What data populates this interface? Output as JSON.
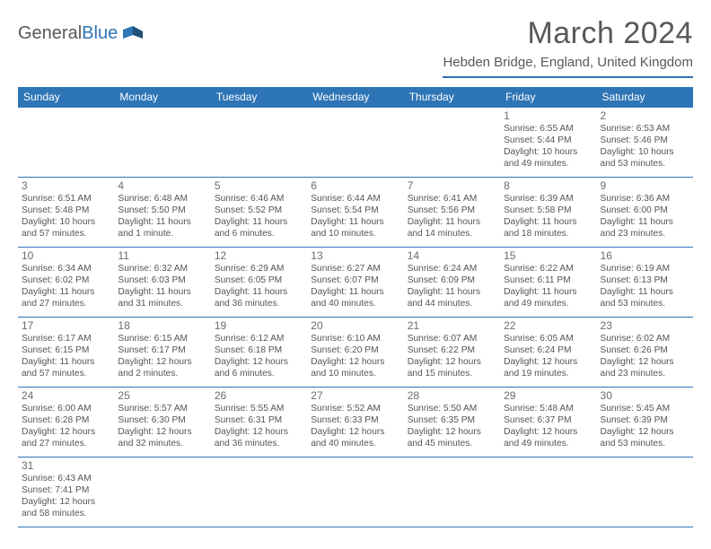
{
  "brand": {
    "name_a": "General",
    "name_b": "Blue"
  },
  "title": "March 2024",
  "location": "Hebden Bridge, England, United Kingdom",
  "colors": {
    "accent": "#2e75b6",
    "text": "#595959",
    "cell_text": "#555555",
    "bg": "#ffffff"
  },
  "weekdays": [
    "Sunday",
    "Monday",
    "Tuesday",
    "Wednesday",
    "Thursday",
    "Friday",
    "Saturday"
  ],
  "weeks": [
    [
      null,
      null,
      null,
      null,
      null,
      {
        "n": "1",
        "l": [
          "Sunrise: 6:55 AM",
          "Sunset: 5:44 PM",
          "Daylight: 10 hours",
          "and 49 minutes."
        ]
      },
      {
        "n": "2",
        "l": [
          "Sunrise: 6:53 AM",
          "Sunset: 5:46 PM",
          "Daylight: 10 hours",
          "and 53 minutes."
        ]
      }
    ],
    [
      {
        "n": "3",
        "l": [
          "Sunrise: 6:51 AM",
          "Sunset: 5:48 PM",
          "Daylight: 10 hours",
          "and 57 minutes."
        ]
      },
      {
        "n": "4",
        "l": [
          "Sunrise: 6:48 AM",
          "Sunset: 5:50 PM",
          "Daylight: 11 hours",
          "and 1 minute."
        ]
      },
      {
        "n": "5",
        "l": [
          "Sunrise: 6:46 AM",
          "Sunset: 5:52 PM",
          "Daylight: 11 hours",
          "and 6 minutes."
        ]
      },
      {
        "n": "6",
        "l": [
          "Sunrise: 6:44 AM",
          "Sunset: 5:54 PM",
          "Daylight: 11 hours",
          "and 10 minutes."
        ]
      },
      {
        "n": "7",
        "l": [
          "Sunrise: 6:41 AM",
          "Sunset: 5:56 PM",
          "Daylight: 11 hours",
          "and 14 minutes."
        ]
      },
      {
        "n": "8",
        "l": [
          "Sunrise: 6:39 AM",
          "Sunset: 5:58 PM",
          "Daylight: 11 hours",
          "and 18 minutes."
        ]
      },
      {
        "n": "9",
        "l": [
          "Sunrise: 6:36 AM",
          "Sunset: 6:00 PM",
          "Daylight: 11 hours",
          "and 23 minutes."
        ]
      }
    ],
    [
      {
        "n": "10",
        "l": [
          "Sunrise: 6:34 AM",
          "Sunset: 6:02 PM",
          "Daylight: 11 hours",
          "and 27 minutes."
        ]
      },
      {
        "n": "11",
        "l": [
          "Sunrise: 6:32 AM",
          "Sunset: 6:03 PM",
          "Daylight: 11 hours",
          "and 31 minutes."
        ]
      },
      {
        "n": "12",
        "l": [
          "Sunrise: 6:29 AM",
          "Sunset: 6:05 PM",
          "Daylight: 11 hours",
          "and 36 minutes."
        ]
      },
      {
        "n": "13",
        "l": [
          "Sunrise: 6:27 AM",
          "Sunset: 6:07 PM",
          "Daylight: 11 hours",
          "and 40 minutes."
        ]
      },
      {
        "n": "14",
        "l": [
          "Sunrise: 6:24 AM",
          "Sunset: 6:09 PM",
          "Daylight: 11 hours",
          "and 44 minutes."
        ]
      },
      {
        "n": "15",
        "l": [
          "Sunrise: 6:22 AM",
          "Sunset: 6:11 PM",
          "Daylight: 11 hours",
          "and 49 minutes."
        ]
      },
      {
        "n": "16",
        "l": [
          "Sunrise: 6:19 AM",
          "Sunset: 6:13 PM",
          "Daylight: 11 hours",
          "and 53 minutes."
        ]
      }
    ],
    [
      {
        "n": "17",
        "l": [
          "Sunrise: 6:17 AM",
          "Sunset: 6:15 PM",
          "Daylight: 11 hours",
          "and 57 minutes."
        ]
      },
      {
        "n": "18",
        "l": [
          "Sunrise: 6:15 AM",
          "Sunset: 6:17 PM",
          "Daylight: 12 hours",
          "and 2 minutes."
        ]
      },
      {
        "n": "19",
        "l": [
          "Sunrise: 6:12 AM",
          "Sunset: 6:18 PM",
          "Daylight: 12 hours",
          "and 6 minutes."
        ]
      },
      {
        "n": "20",
        "l": [
          "Sunrise: 6:10 AM",
          "Sunset: 6:20 PM",
          "Daylight: 12 hours",
          "and 10 minutes."
        ]
      },
      {
        "n": "21",
        "l": [
          "Sunrise: 6:07 AM",
          "Sunset: 6:22 PM",
          "Daylight: 12 hours",
          "and 15 minutes."
        ]
      },
      {
        "n": "22",
        "l": [
          "Sunrise: 6:05 AM",
          "Sunset: 6:24 PM",
          "Daylight: 12 hours",
          "and 19 minutes."
        ]
      },
      {
        "n": "23",
        "l": [
          "Sunrise: 6:02 AM",
          "Sunset: 6:26 PM",
          "Daylight: 12 hours",
          "and 23 minutes."
        ]
      }
    ],
    [
      {
        "n": "24",
        "l": [
          "Sunrise: 6:00 AM",
          "Sunset: 6:28 PM",
          "Daylight: 12 hours",
          "and 27 minutes."
        ]
      },
      {
        "n": "25",
        "l": [
          "Sunrise: 5:57 AM",
          "Sunset: 6:30 PM",
          "Daylight: 12 hours",
          "and 32 minutes."
        ]
      },
      {
        "n": "26",
        "l": [
          "Sunrise: 5:55 AM",
          "Sunset: 6:31 PM",
          "Daylight: 12 hours",
          "and 36 minutes."
        ]
      },
      {
        "n": "27",
        "l": [
          "Sunrise: 5:52 AM",
          "Sunset: 6:33 PM",
          "Daylight: 12 hours",
          "and 40 minutes."
        ]
      },
      {
        "n": "28",
        "l": [
          "Sunrise: 5:50 AM",
          "Sunset: 6:35 PM",
          "Daylight: 12 hours",
          "and 45 minutes."
        ]
      },
      {
        "n": "29",
        "l": [
          "Sunrise: 5:48 AM",
          "Sunset: 6:37 PM",
          "Daylight: 12 hours",
          "and 49 minutes."
        ]
      },
      {
        "n": "30",
        "l": [
          "Sunrise: 5:45 AM",
          "Sunset: 6:39 PM",
          "Daylight: 12 hours",
          "and 53 minutes."
        ]
      }
    ],
    [
      {
        "n": "31",
        "l": [
          "Sunrise: 6:43 AM",
          "Sunset: 7:41 PM",
          "Daylight: 12 hours",
          "and 58 minutes."
        ]
      },
      null,
      null,
      null,
      null,
      null,
      null
    ]
  ]
}
